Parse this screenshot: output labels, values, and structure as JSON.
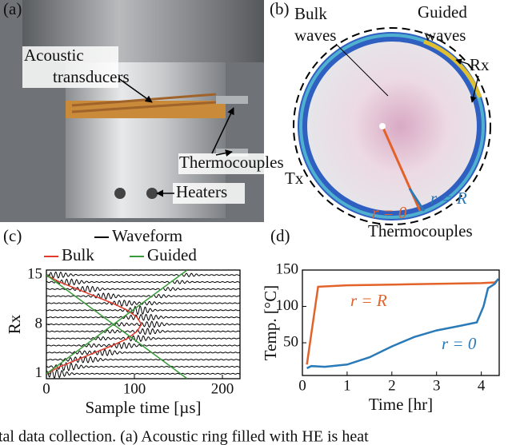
{
  "panels": {
    "a": {
      "label": "(a)",
      "annotations": [
        "Acoustic",
        "transducers",
        "Thermocouples",
        "Heaters"
      ]
    },
    "b": {
      "label": "(b)",
      "annotations": [
        "Bulk",
        "waves",
        "Guided",
        "waves",
        "Rx",
        "Tx",
        "r = 0",
        "r = R",
        "Thermocouples"
      ]
    }
  },
  "chart_data": [
    {
      "type": "line",
      "panel_label": "(c)",
      "xlabel": "Sample time [µs]",
      "ylabel": "Rx",
      "xlim": [
        0,
        220
      ],
      "xticks": [
        0,
        100,
        200
      ],
      "ylim": [
        0.3,
        15.7
      ],
      "yticks": [
        1,
        8,
        15
      ],
      "series": [
        {
          "name": "Waveform",
          "color": "#000000"
        },
        {
          "name": "Bulk",
          "color": "#e03a2a",
          "x": [
            0,
            15,
            35,
            55,
            75,
            92,
            103,
            108,
            103,
            92,
            75,
            55,
            35,
            15,
            0
          ],
          "values": [
            1,
            2,
            3,
            4,
            5,
            6,
            7,
            8,
            9,
            10,
            11,
            12,
            13,
            14,
            15
          ]
        },
        {
          "name": "Guided",
          "color": "#3a9a3a",
          "x": [
            0,
            160,
            null,
            0,
            160
          ],
          "values": [
            1,
            15.7,
            null,
            15,
            0.3
          ]
        }
      ]
    },
    {
      "type": "line",
      "panel_label": "(d)",
      "xlabel": "Time [hr]",
      "ylabel": "Temp. [°C]",
      "xlim": [
        0,
        4.4
      ],
      "xticks": [
        0,
        1,
        2,
        3,
        4
      ],
      "ylim": [
        5,
        150
      ],
      "yticks": [
        50,
        100,
        150
      ],
      "series": [
        {
          "name": "r = R",
          "color": "#e2622a",
          "x": [
            0.1,
            0.35,
            1,
            2,
            3,
            4,
            4.3,
            4.38
          ],
          "values": [
            20,
            127,
            129,
            130,
            131,
            132,
            133,
            137
          ]
        },
        {
          "name": "r = 0",
          "color": "#2a7ab8",
          "x": [
            0.1,
            0.2,
            0.5,
            1,
            1.5,
            2,
            2.5,
            3,
            3.5,
            3.9,
            4.05,
            4.15,
            4.3,
            4.38
          ],
          "values": [
            15,
            18,
            17,
            20,
            30,
            45,
            58,
            67,
            73,
            78,
            100,
            125,
            131,
            138
          ]
        }
      ]
    }
  ],
  "caption": "tal data collection. (a) Acoustic ring filled with HE is heat"
}
